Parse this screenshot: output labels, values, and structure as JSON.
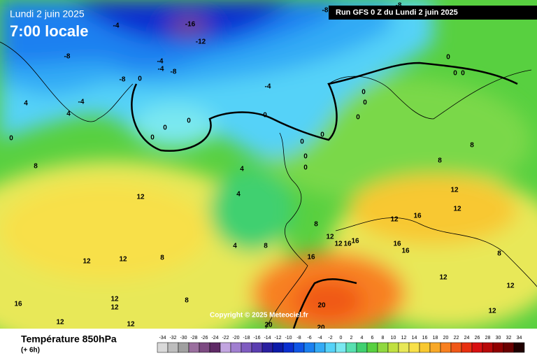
{
  "header": {
    "date": "Lundi 2 juin 2025",
    "time": "7:00 locale",
    "run": "Run GFS 0 Z du Lundi 2 juin 2025"
  },
  "footer": {
    "title": "Température 850hPa",
    "subtitle": "(+ 6h)",
    "copyright": "Copyright © 2025 Meteociel.fr"
  },
  "scale": {
    "values": [
      -34,
      -32,
      -30,
      -28,
      -26,
      -24,
      -22,
      -20,
      -18,
      -16,
      -14,
      -12,
      -10,
      -8,
      -6,
      -4,
      -2,
      0,
      2,
      4,
      6,
      8,
      10,
      12,
      14,
      16,
      18,
      20,
      22,
      24,
      26,
      28,
      30,
      32,
      34
    ],
    "colors": [
      "#d9d9d9",
      "#bdbdbd",
      "#a0a0a0",
      "#9a6f9e",
      "#7d4a82",
      "#5f2a66",
      "#c2a5e0",
      "#a07fd0",
      "#7f5cc0",
      "#5a3db0",
      "#2a1fa0",
      "#0c1aa8",
      "#0a2fd0",
      "#0f55e6",
      "#1a80f0",
      "#33aaf5",
      "#55d2f8",
      "#7ae8f0",
      "#58e0b0",
      "#40d070",
      "#58d040",
      "#90d840",
      "#c0e040",
      "#e8e858",
      "#f8e048",
      "#f8c830",
      "#f8a828",
      "#f88020",
      "#f05818",
      "#e83010",
      "#d81010",
      "#b80808",
      "#900000",
      "#6a0000",
      "#200000"
    ]
  },
  "contour_labels": [
    -16,
    -12,
    -8,
    -8,
    -4,
    -8,
    -4,
    -4,
    -8,
    -8,
    0,
    -4,
    -4,
    0,
    0,
    0,
    0,
    4,
    4,
    0,
    8,
    4,
    4,
    12,
    8,
    12,
    16,
    12,
    16,
    8,
    4,
    12,
    12,
    8,
    16,
    12,
    16,
    16,
    16,
    12,
    12,
    8,
    8,
    8,
    12,
    12,
    16,
    12,
    12,
    8,
    20,
    20,
    20,
    12,
    12,
    12,
    0,
    0,
    0,
    0,
    0,
    0,
    0,
    0,
    0,
    0
  ]
}
